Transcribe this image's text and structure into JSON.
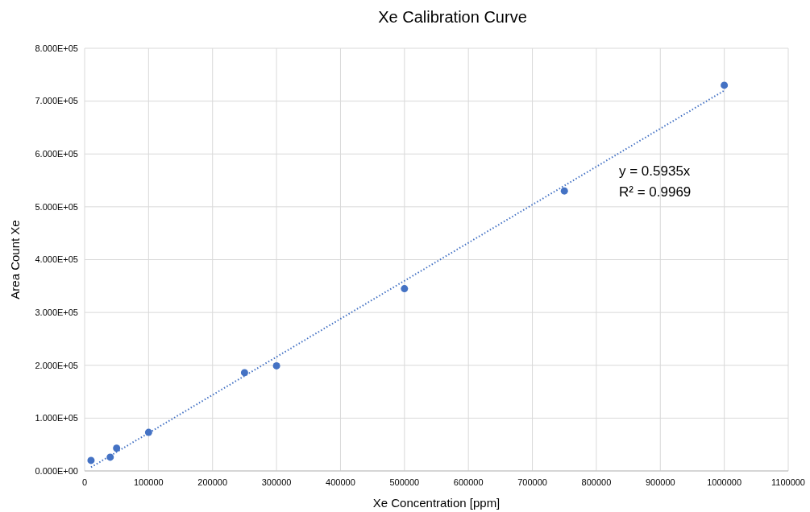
{
  "chart_data": {
    "type": "scatter",
    "title": "Xe Calibration Curve",
    "xlabel": "Xe Concentration [ppm]",
    "ylabel": "Area Count Xe",
    "x": [
      10000,
      40000,
      50000,
      100000,
      250000,
      300000,
      500000,
      750000,
      1000000
    ],
    "series": [
      {
        "color": "#4472c4",
        "marker": "circle",
        "values": [
          20000,
          26000,
          43000,
          73000,
          186000,
          199000,
          345000,
          530000,
          730000
        ]
      },
      {
        "type": "line",
        "color": "#4472c4",
        "line_style": "dotted",
        "marker": "none",
        "x": [
          10000,
          1000000
        ],
        "values": [
          7000,
          720000
        ]
      }
    ],
    "xlim": [
      0,
      1100000
    ],
    "xticks": [
      0,
      100000,
      200000,
      300000,
      400000,
      500000,
      600000,
      700000,
      800000,
      900000,
      1000000,
      1100000
    ],
    "ylim": [
      0,
      800000
    ],
    "yticks": [
      {
        "value": 0,
        "label": "0.000E+00"
      },
      {
        "value": 100000,
        "label": "1.000E+05"
      },
      {
        "value": 200000,
        "label": "2.000E+05"
      },
      {
        "value": 300000,
        "label": "3.000E+05"
      },
      {
        "value": 400000,
        "label": "4.000E+05"
      },
      {
        "value": 500000,
        "label": "5.000E+05"
      },
      {
        "value": 600000,
        "label": "6.000E+05"
      },
      {
        "value": 700000,
        "label": "7.000E+05"
      },
      {
        "value": 800000,
        "label": "8.000E+05"
      }
    ],
    "grid": true,
    "annotations": [
      "y = 0.5935x",
      "R² = 0.9969"
    ]
  }
}
